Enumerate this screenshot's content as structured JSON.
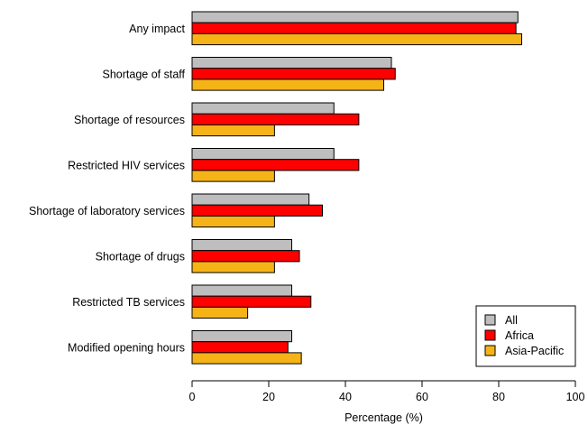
{
  "chart_data": {
    "type": "bar",
    "orientation": "horizontal",
    "categories": [
      "Any impact",
      "Shortage of staff",
      "Shortage of resources",
      "Restricted HIV services",
      "Shortage of laboratory services",
      "Shortage of drugs",
      "Restricted TB services",
      "Modified opening hours"
    ],
    "series": [
      {
        "name": "All",
        "color": "#bebebe",
        "values": [
          85,
          52,
          37,
          37,
          30.5,
          26,
          26,
          26
        ]
      },
      {
        "name": "Africa",
        "color": "#ff0000",
        "values": [
          84.5,
          53,
          43.5,
          43.5,
          34,
          28,
          31,
          25
        ]
      },
      {
        "name": "Asia-Pacific",
        "color": "#f5b318",
        "values": [
          86,
          50,
          21.5,
          21.5,
          21.5,
          21.5,
          14.5,
          28.5
        ]
      }
    ],
    "xlabel": "Percentage (%)",
    "xlim": [
      0,
      100
    ],
    "xticks": [
      0,
      20,
      40,
      60,
      80,
      100
    ],
    "legend_position": "bottom-right",
    "grid": false
  }
}
